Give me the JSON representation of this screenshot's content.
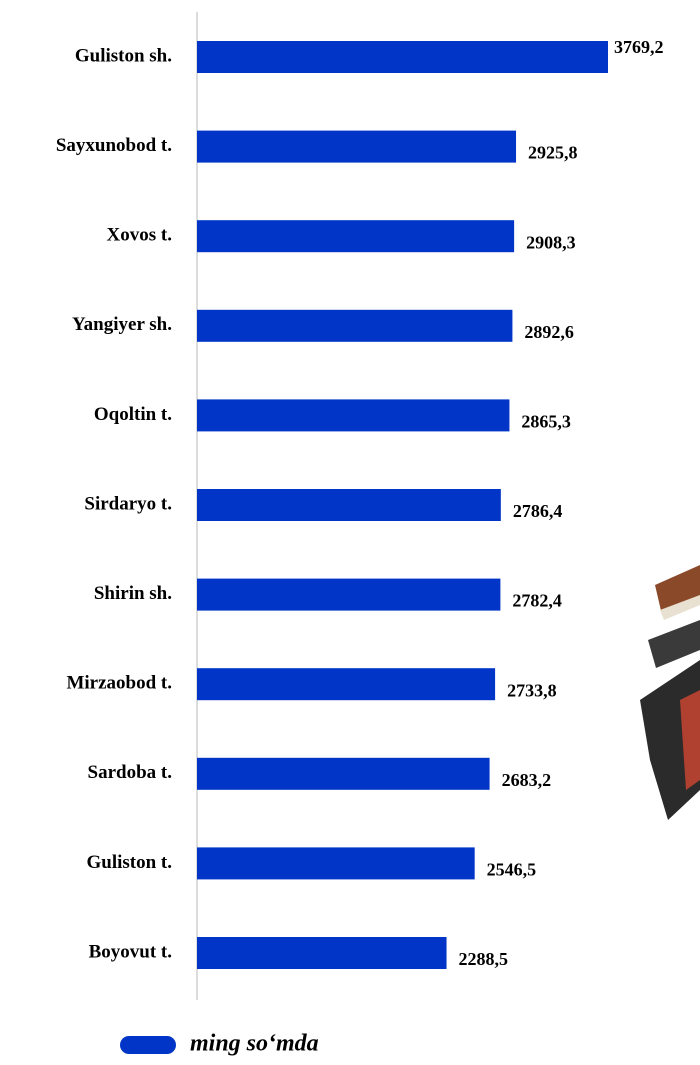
{
  "chart_data": {
    "type": "bar",
    "orientation": "horizontal",
    "categories": [
      "Guliston sh.",
      "Sayxunobod t.",
      "Xovos t.",
      "Yangiyer sh.",
      "Oqoltin t.",
      "Sirdaryo t.",
      "Shirin sh.",
      "Mirzaobod t.",
      "Sardoba t.",
      "Guliston t.",
      "Boyovut t."
    ],
    "series": [
      {
        "name": "ming so‘mda",
        "color": "#0035c8",
        "values": [
          3769.2,
          2925.8,
          2908.3,
          2892.6,
          2865.3,
          2786.4,
          2782.4,
          2733.8,
          2683.2,
          2546.5,
          2288.5
        ],
        "value_labels": [
          "3769,2",
          "2925,8",
          "2908,3",
          "2892,6",
          "2865,3",
          "2786,4",
          "2782,4",
          "2733,8",
          "2683,2",
          "2546,5",
          "2288,5"
        ]
      }
    ],
    "legend": "bottom"
  }
}
